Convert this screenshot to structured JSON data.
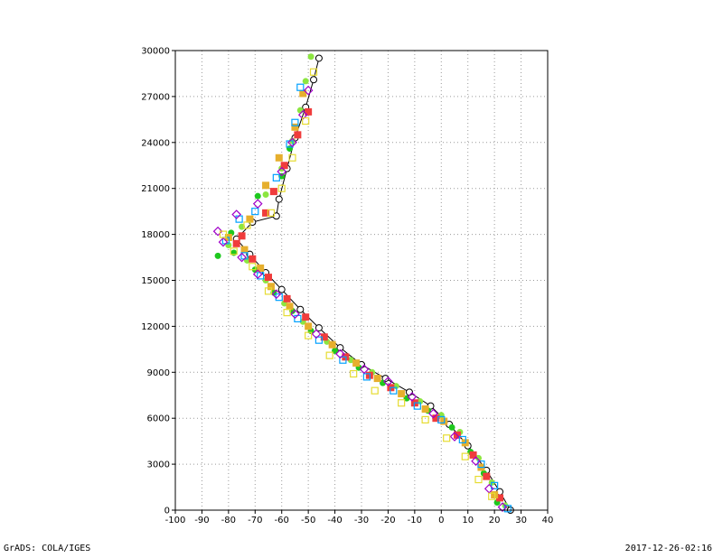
{
  "chart_data": {
    "type": "scatter",
    "title": "",
    "xlabel": "",
    "ylabel": "",
    "xlim": [
      -100,
      40
    ],
    "ylim": [
      0,
      30000
    ],
    "x_ticks": [
      -100,
      -90,
      -80,
      -70,
      -60,
      -50,
      -40,
      -30,
      -20,
      -10,
      0,
      10,
      20,
      30,
      40
    ],
    "y_ticks": [
      0,
      3000,
      6000,
      9000,
      12000,
      15000,
      18000,
      21000,
      24000,
      27000,
      30000
    ],
    "grid": true,
    "series": [
      {
        "color": "#000000",
        "marker": "open-circle-star",
        "points": [
          [
            26,
            0
          ],
          [
            22,
            1200
          ],
          [
            17,
            2600
          ],
          [
            10,
            4200
          ],
          [
            3,
            5600
          ],
          [
            -4,
            6800
          ],
          [
            -12,
            7700
          ],
          [
            -21,
            8600
          ],
          [
            -30,
            9500
          ],
          [
            -38,
            10600
          ],
          [
            -46,
            11900
          ],
          [
            -53,
            13100
          ],
          [
            -60,
            14400
          ],
          [
            -66,
            15500
          ],
          [
            -72,
            16700
          ],
          [
            -77,
            17700
          ],
          [
            -71,
            18800
          ],
          [
            -62,
            19200
          ],
          [
            -61,
            20300
          ],
          [
            -58,
            22300
          ],
          [
            -55,
            24300
          ],
          [
            -51,
            26300
          ],
          [
            -48,
            28100
          ],
          [
            -46,
            29500
          ]
        ]
      },
      {
        "color": "#8CE640",
        "marker": "filled-circle",
        "points": [
          [
            24,
            300
          ],
          [
            19,
            1800
          ],
          [
            14,
            3400
          ],
          [
            7,
            5100
          ],
          [
            0,
            6200
          ],
          [
            -8,
            7100
          ],
          [
            -17,
            8100
          ],
          [
            -26,
            9000
          ],
          [
            -34,
            9800
          ],
          [
            -43,
            11000
          ],
          [
            -52,
            12300
          ],
          [
            -59,
            13500
          ],
          [
            -66,
            15000
          ],
          [
            -73,
            16300
          ],
          [
            -80,
            17300
          ],
          [
            -75,
            18500
          ],
          [
            -66,
            20600
          ],
          [
            -60,
            22300
          ],
          [
            -56,
            24100
          ],
          [
            -53,
            26100
          ],
          [
            -51,
            28000
          ],
          [
            -49,
            29600
          ]
        ]
      },
      {
        "color": "#1EC81E",
        "marker": "filled-circle",
        "points": [
          [
            21,
            500
          ],
          [
            16,
            2400
          ],
          [
            11,
            3800
          ],
          [
            4,
            5400
          ],
          [
            -5,
            6500
          ],
          [
            -13,
            7300
          ],
          [
            -22,
            8300
          ],
          [
            -31,
            9300
          ],
          [
            -40,
            10400
          ],
          [
            -49,
            11700
          ],
          [
            -56,
            13000
          ],
          [
            -63,
            14200
          ],
          [
            -70,
            15700
          ],
          [
            -78,
            16800
          ],
          [
            -84,
            16600
          ],
          [
            -79,
            18100
          ],
          [
            -69,
            20500
          ],
          [
            -60,
            21800
          ],
          [
            -57,
            23600
          ]
        ]
      },
      {
        "color": "#F03C3C",
        "marker": "filled-square",
        "points": [
          [
            22,
            800
          ],
          [
            17,
            2200
          ],
          [
            12,
            3600
          ],
          [
            6,
            4900
          ],
          [
            -2,
            6000
          ],
          [
            -10,
            7000
          ],
          [
            -19,
            8000
          ],
          [
            -27,
            8800
          ],
          [
            -36,
            10000
          ],
          [
            -44,
            11300
          ],
          [
            -51,
            12600
          ],
          [
            -58,
            13800
          ],
          [
            -65,
            15200
          ],
          [
            -71,
            16400
          ],
          [
            -77,
            17400
          ],
          [
            -75,
            17900
          ],
          [
            -66,
            19400
          ],
          [
            -63,
            20800
          ],
          [
            -59,
            22500
          ],
          [
            -54,
            24500
          ],
          [
            -50,
            26000
          ]
        ]
      },
      {
        "color": "#E6AF2D",
        "marker": "filled-square",
        "points": [
          [
            20,
            1000
          ],
          [
            15,
            2800
          ],
          [
            9,
            4400
          ],
          [
            1,
            5800
          ],
          [
            -6,
            6600
          ],
          [
            -15,
            7600
          ],
          [
            -24,
            8600
          ],
          [
            -32,
            9600
          ],
          [
            -41,
            10800
          ],
          [
            -50,
            12000
          ],
          [
            -57,
            13300
          ],
          [
            -64,
            14600
          ],
          [
            -68,
            15800
          ],
          [
            -74,
            17000
          ],
          [
            -80,
            17800
          ],
          [
            -72,
            19000
          ],
          [
            -66,
            21200
          ],
          [
            -61,
            23000
          ],
          [
            -55,
            25000
          ],
          [
            -52,
            27200
          ]
        ]
      },
      {
        "color": "#00A0FF",
        "marker": "open-square",
        "points": [
          [
            25,
            100
          ],
          [
            20,
            1600
          ],
          [
            15,
            3000
          ],
          [
            8,
            4600
          ],
          [
            0,
            5900
          ],
          [
            -9,
            6800
          ],
          [
            -18,
            7800
          ],
          [
            -28,
            8700
          ],
          [
            -37,
            9800
          ],
          [
            -46,
            11100
          ],
          [
            -54,
            12500
          ],
          [
            -61,
            13900
          ],
          [
            -68,
            15300
          ],
          [
            -74,
            16600
          ],
          [
            -81,
            17600
          ],
          [
            -76,
            19000
          ],
          [
            -70,
            19500
          ],
          [
            -62,
            21700
          ],
          [
            -57,
            23900
          ],
          [
            -55,
            25300
          ],
          [
            -53,
            27600
          ]
        ]
      },
      {
        "color": "#A000C8",
        "marker": "open-diamond",
        "points": [
          [
            23,
            200
          ],
          [
            18,
            1400
          ],
          [
            13,
            3200
          ],
          [
            5,
            4800
          ],
          [
            -3,
            6300
          ],
          [
            -11,
            7400
          ],
          [
            -20,
            8400
          ],
          [
            -29,
            9200
          ],
          [
            -38,
            10200
          ],
          [
            -47,
            11500
          ],
          [
            -55,
            12800
          ],
          [
            -62,
            14100
          ],
          [
            -69,
            15400
          ],
          [
            -75,
            16500
          ],
          [
            -82,
            17500
          ],
          [
            -84,
            18200
          ],
          [
            -77,
            19300
          ],
          [
            -69,
            20000
          ],
          [
            -60,
            22100
          ],
          [
            -56,
            24000
          ],
          [
            -52,
            25800
          ],
          [
            -50,
            27400
          ]
        ]
      },
      {
        "color": "#E6DC32",
        "marker": "open-square",
        "points": [
          [
            19,
            900
          ],
          [
            14,
            2000
          ],
          [
            9,
            3500
          ],
          [
            2,
            4700
          ],
          [
            -6,
            5900
          ],
          [
            -15,
            7000
          ],
          [
            -25,
            7800
          ],
          [
            -33,
            8900
          ],
          [
            -42,
            10100
          ],
          [
            -50,
            11400
          ],
          [
            -58,
            12900
          ],
          [
            -65,
            14300
          ],
          [
            -71,
            15900
          ],
          [
            -78,
            16900
          ],
          [
            -82,
            18000
          ],
          [
            -73,
            18600
          ],
          [
            -64,
            19400
          ],
          [
            -60,
            21000
          ],
          [
            -56,
            23000
          ],
          [
            -51,
            25400
          ],
          [
            -48,
            28600
          ]
        ]
      }
    ]
  },
  "footer": {
    "left": "GrADS: COLA/IGES",
    "right": "2017-12-26-02:16"
  }
}
